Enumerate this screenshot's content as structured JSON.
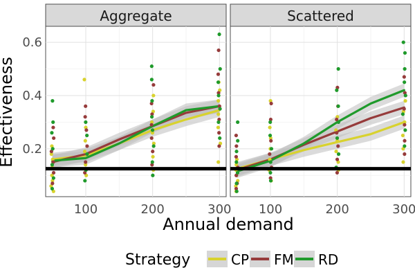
{
  "chart_data": {
    "type": "scatter",
    "xlabel": "Annual demand",
    "ylabel": "Effectiveness",
    "xlim": [
      40,
      310
    ],
    "ylim": [
      0.02,
      0.66
    ],
    "x_ticks": [
      100,
      200,
      300
    ],
    "y_ticks": [
      0.2,
      0.4,
      0.6
    ],
    "x_tick_labels": [
      "100",
      "200",
      "300"
    ],
    "y_tick_labels": [
      "0.2",
      "0.4",
      "0.6"
    ],
    "grid": true,
    "reference_line": 0.125,
    "legend": {
      "title": "Strategy",
      "placement": "bottom",
      "items": [
        {
          "label": "CP",
          "color": "#d8d22e"
        },
        {
          "label": "FM",
          "color": "#963b3b"
        },
        {
          "label": "RD",
          "color": "#1f9a2b"
        }
      ]
    },
    "facets": [
      {
        "title": "Aggregate",
        "points": [
          {
            "series": "CP",
            "x": 50,
            "values": [
              0.04,
              0.06,
              0.08,
              0.1,
              0.13,
              0.16,
              0.18,
              0.21
            ]
          },
          {
            "series": "FM",
            "x": 50,
            "values": [
              0.07,
              0.11,
              0.15,
              0.19,
              0.24,
              0.28
            ]
          },
          {
            "series": "RD",
            "x": 50,
            "values": [
              0.05,
              0.09,
              0.14,
              0.2,
              0.26,
              0.3,
              0.38
            ]
          },
          {
            "series": "CP",
            "x": 100,
            "values": [
              0.1,
              0.14,
              0.19,
              0.23,
              0.28,
              0.46
            ]
          },
          {
            "series": "FM",
            "x": 100,
            "values": [
              0.11,
              0.15,
              0.21,
              0.27,
              0.32,
              0.36
            ]
          },
          {
            "series": "RD",
            "x": 100,
            "values": [
              0.08,
              0.12,
              0.18,
              0.25,
              0.3
            ]
          },
          {
            "series": "CP",
            "x": 200,
            "values": [
              0.12,
              0.17,
              0.22,
              0.26,
              0.3,
              0.34,
              0.4
            ]
          },
          {
            "series": "FM",
            "x": 200,
            "values": [
              0.14,
              0.19,
              0.24,
              0.29,
              0.33,
              0.37,
              0.44
            ]
          },
          {
            "series": "RD",
            "x": 200,
            "values": [
              0.1,
              0.15,
              0.21,
              0.27,
              0.32,
              0.38,
              0.46,
              0.51
            ]
          },
          {
            "series": "CP",
            "x": 300,
            "values": [
              0.15,
              0.22,
              0.28,
              0.33,
              0.38,
              0.42,
              0.45
            ]
          },
          {
            "series": "FM",
            "x": 300,
            "values": [
              0.21,
              0.26,
              0.31,
              0.36,
              0.41,
              0.48,
              0.57
            ]
          },
          {
            "series": "RD",
            "x": 300,
            "values": [
              0.24,
              0.3,
              0.35,
              0.4,
              0.45,
              0.5,
              0.63
            ]
          }
        ],
        "smooth": [
          {
            "series": "CP",
            "x": [
              50,
              100,
              150,
              200,
              250,
              300
            ],
            "y": [
              0.16,
              0.175,
              0.22,
              0.27,
              0.31,
              0.345
            ]
          },
          {
            "series": "FM",
            "x": [
              50,
              100,
              150,
              200,
              250,
              300
            ],
            "y": [
              0.15,
              0.18,
              0.235,
              0.285,
              0.335,
              0.36
            ]
          },
          {
            "series": "RD",
            "x": [
              50,
              100,
              150,
              200,
              250,
              300
            ],
            "y": [
              0.155,
              0.165,
              0.22,
              0.285,
              0.345,
              0.36
            ]
          }
        ]
      },
      {
        "title": "Scattered",
        "points": [
          {
            "series": "CP",
            "x": 50,
            "values": [
              0.04,
              0.06,
              0.08,
              0.1,
              0.12,
              0.14,
              0.16
            ]
          },
          {
            "series": "FM",
            "x": 50,
            "values": [
              0.05,
              0.07,
              0.1,
              0.13,
              0.17,
              0.21,
              0.25
            ]
          },
          {
            "series": "RD",
            "x": 50,
            "values": [
              0.04,
              0.07,
              0.11,
              0.15,
              0.19,
              0.23,
              0.3
            ]
          },
          {
            "series": "CP",
            "x": 100,
            "values": [
              0.08,
              0.12,
              0.16,
              0.2,
              0.24,
              0.28,
              0.38
            ]
          },
          {
            "series": "FM",
            "x": 100,
            "values": [
              0.09,
              0.13,
              0.18,
              0.23,
              0.31,
              0.37
            ]
          },
          {
            "series": "RD",
            "x": 100,
            "values": [
              0.08,
              0.11,
              0.15,
              0.2,
              0.25,
              0.3
            ]
          },
          {
            "series": "CP",
            "x": 200,
            "values": [
              0.12,
              0.15,
              0.19,
              0.23,
              0.27,
              0.32
            ]
          },
          {
            "series": "FM",
            "x": 200,
            "values": [
              0.11,
              0.16,
              0.21,
              0.26,
              0.31,
              0.36,
              0.43
            ]
          },
          {
            "series": "RD",
            "x": 200,
            "values": [
              0.13,
              0.18,
              0.24,
              0.3,
              0.36,
              0.42,
              0.5
            ]
          },
          {
            "series": "CP",
            "x": 300,
            "values": [
              0.15,
              0.2,
              0.25,
              0.3,
              0.34,
              0.38
            ]
          },
          {
            "series": "FM",
            "x": 300,
            "values": [
              0.18,
              0.23,
              0.29,
              0.35,
              0.41,
              0.47
            ]
          },
          {
            "series": "RD",
            "x": 300,
            "values": [
              0.21,
              0.27,
              0.33,
              0.4,
              0.45,
              0.5,
              0.56,
              0.6
            ]
          }
        ],
        "smooth": [
          {
            "series": "CP",
            "x": [
              50,
              100,
              150,
              200,
              250,
              300
            ],
            "y": [
              0.125,
              0.16,
              0.195,
              0.225,
              0.255,
              0.3
            ]
          },
          {
            "series": "FM",
            "x": [
              50,
              100,
              150,
              200,
              250,
              300
            ],
            "y": [
              0.12,
              0.16,
              0.215,
              0.265,
              0.315,
              0.355
            ]
          },
          {
            "series": "RD",
            "x": [
              50,
              100,
              150,
              200,
              250,
              300
            ],
            "y": [
              0.115,
              0.155,
              0.22,
              0.3,
              0.37,
              0.42
            ]
          }
        ]
      }
    ]
  }
}
